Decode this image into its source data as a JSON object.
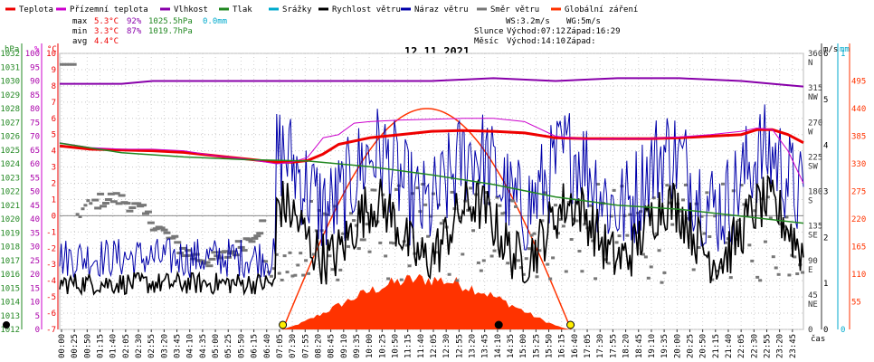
{
  "legend": [
    {
      "key": "teplota",
      "label": "Teplota",
      "color": "#ee0000"
    },
    {
      "key": "prizemni",
      "label": "Přízemní teplota",
      "color": "#cc00cc"
    },
    {
      "key": "vlhkost",
      "label": "Vlhkost",
      "color": "#8800aa"
    },
    {
      "key": "tlak",
      "label": "Tlak",
      "color": "#228822"
    },
    {
      "key": "srazky",
      "label": "Srážky",
      "color": "#00aacc"
    },
    {
      "key": "rychlost",
      "label": "Rychlost větru",
      "color": "#000000"
    },
    {
      "key": "naraz",
      "label": "Náraz větru",
      "color": "#0000aa"
    },
    {
      "key": "smer",
      "label": "Směr větru",
      "color": "#777777"
    },
    {
      "key": "zareni",
      "label": "Globální záření",
      "color": "#ff3300"
    }
  ],
  "stats": {
    "max_label": "max",
    "max_temp": "5.3°C",
    "max_hum": "92%",
    "max_press": "1025.5hPa",
    "max_rain": "0.0mm",
    "min_label": "min",
    "min_temp": "3.3°C",
    "min_hum": "87%",
    "min_press": "1019.7hPa",
    "avg_label": "avg",
    "avg_temp": "4.4°C"
  },
  "astro": {
    "ws": "WS:3.2m/s",
    "wg": "WG:5m/s",
    "sun_label": "Slunce",
    "sun_rise": "Východ:07:12",
    "sun_set": "Západ:16:29",
    "moon_label": "Měsíc",
    "moon_rise": "Východ:14:10",
    "moon_set": "Západ:"
  },
  "date": "12.11.2021",
  "chart_data": {
    "type": "line",
    "date": "12.11.2021",
    "xlabel": "čas",
    "axes": {
      "hpa": {
        "label": "hPa",
        "range": [
          1012,
          1032
        ],
        "ticks": [
          1012,
          1013,
          1014,
          1015,
          1016,
          1017,
          1018,
          1019,
          1020,
          1021,
          1022,
          1023,
          1024,
          1025,
          1026,
          1027,
          1028,
          1029,
          1030,
          1031,
          1032
        ]
      },
      "percent": {
        "label": "%",
        "range": [
          0,
          100
        ],
        "ticks": [
          0,
          5,
          10,
          15,
          20,
          25,
          30,
          35,
          40,
          45,
          50,
          55,
          60,
          65,
          70,
          75,
          80,
          85,
          90,
          95,
          100
        ]
      },
      "celsius": {
        "label": "°C",
        "range": [
          -7,
          10
        ],
        "ticks": [
          -7,
          -6,
          -5,
          -4,
          -3,
          -2,
          -1,
          0,
          1,
          2,
          3,
          4,
          5,
          6,
          7,
          8,
          9,
          10
        ]
      },
      "direction": {
        "range": [
          0,
          360
        ],
        "ticks": [
          {
            "v": 360,
            "n": "N"
          },
          {
            "v": 315,
            "n": "NW"
          },
          {
            "v": 270,
            "n": "W"
          },
          {
            "v": 225,
            "n": "SW"
          },
          {
            "v": 180,
            "n": "S"
          },
          {
            "v": 135,
            "n": "SE"
          },
          {
            "v": 90,
            "n": "E"
          },
          {
            "v": 45,
            "n": "NE"
          },
          {
            "v": 0,
            "n": ""
          }
        ]
      },
      "ms": {
        "label": "m/s",
        "range": [
          0,
          6
        ],
        "ticks": [
          0,
          1,
          2,
          3,
          4,
          5,
          6
        ]
      },
      "mm": {
        "label": "mm",
        "range": [
          0,
          1
        ],
        "ticks": [
          0,
          1
        ]
      },
      "wm2": {
        "range": [
          0,
          550
        ],
        "ticks": [
          55,
          110,
          165,
          220,
          275,
          330,
          385,
          440,
          495
        ]
      }
    },
    "x_ticks": [
      "00:00",
      "00:25",
      "00:50",
      "01:15",
      "01:40",
      "02:05",
      "02:30",
      "02:55",
      "03:20",
      "03:45",
      "04:10",
      "04:35",
      "05:00",
      "05:25",
      "05:50",
      "06:15",
      "06:40",
      "07:05",
      "07:30",
      "07:55",
      "08:20",
      "08:45",
      "09:10",
      "09:35",
      "10:00",
      "10:25",
      "10:50",
      "11:15",
      "11:40",
      "12:05",
      "12:30",
      "12:55",
      "13:20",
      "13:45",
      "14:10",
      "14:35",
      "15:00",
      "15:25",
      "15:50",
      "16:15",
      "16:40",
      "17:05",
      "17:30",
      "17:55",
      "18:20",
      "18:45",
      "19:10",
      "19:35",
      "20:00",
      "20:25",
      "20:50",
      "21:15",
      "21:40",
      "22:05",
      "22:30",
      "22:55",
      "23:20",
      "23:45"
    ],
    "series": [
      {
        "name": "Teplota",
        "axis": "celsius",
        "points": [
          [
            0,
            4.3
          ],
          [
            1,
            4.1
          ],
          [
            2,
            4.05
          ],
          [
            3,
            4.0
          ],
          [
            4,
            3.9
          ],
          [
            5,
            3.7
          ],
          [
            6,
            3.5
          ],
          [
            7,
            3.3
          ],
          [
            7.5,
            3.3
          ],
          [
            8,
            3.4
          ],
          [
            8.5,
            3.8
          ],
          [
            9,
            4.4
          ],
          [
            10,
            4.8
          ],
          [
            11,
            5.0
          ],
          [
            12,
            5.2
          ],
          [
            13,
            5.25
          ],
          [
            14,
            5.2
          ],
          [
            15,
            5.1
          ],
          [
            16,
            4.8
          ],
          [
            17,
            4.75
          ],
          [
            18,
            4.75
          ],
          [
            19,
            4.75
          ],
          [
            20,
            4.8
          ],
          [
            21,
            4.9
          ],
          [
            22,
            5.0
          ],
          [
            22.5,
            5.3
          ],
          [
            23,
            5.3
          ],
          [
            23.5,
            5.0
          ],
          [
            24,
            4.5
          ]
        ]
      },
      {
        "name": "Přízemní teplota",
        "axis": "celsius",
        "points": [
          [
            0,
            4.5
          ],
          [
            1,
            4.2
          ],
          [
            2,
            4.1
          ],
          [
            3,
            4.1
          ],
          [
            4,
            4.0
          ],
          [
            5,
            3.7
          ],
          [
            6,
            3.5
          ],
          [
            7,
            3.2
          ],
          [
            7.5,
            3.3
          ],
          [
            8,
            3.6
          ],
          [
            8.5,
            4.8
          ],
          [
            9,
            5.0
          ],
          [
            9.5,
            5.7
          ],
          [
            10,
            5.8
          ],
          [
            11,
            5.9
          ],
          [
            12,
            5.95
          ],
          [
            13,
            6.0
          ],
          [
            14,
            6.0
          ],
          [
            15,
            5.8
          ],
          [
            16,
            4.9
          ],
          [
            17,
            4.7
          ],
          [
            18,
            4.75
          ],
          [
            19,
            4.75
          ],
          [
            20,
            4.85
          ],
          [
            21,
            5.0
          ],
          [
            22,
            5.2
          ],
          [
            22.5,
            5.4
          ],
          [
            23,
            5.3
          ],
          [
            23.5,
            4.0
          ],
          [
            24,
            2.0
          ]
        ]
      },
      {
        "name": "Vlhkost",
        "axis": "percent",
        "points": [
          [
            0,
            89
          ],
          [
            2,
            89
          ],
          [
            3,
            90
          ],
          [
            5,
            90
          ],
          [
            7,
            90
          ],
          [
            8,
            90
          ],
          [
            10,
            90
          ],
          [
            12,
            90
          ],
          [
            14,
            91
          ],
          [
            16,
            90
          ],
          [
            18,
            91
          ],
          [
            20,
            91
          ],
          [
            22,
            90
          ],
          [
            23,
            89
          ],
          [
            24,
            88
          ]
        ]
      },
      {
        "name": "Tlak",
        "axis": "hpa",
        "points": [
          [
            0,
            1025.5
          ],
          [
            2,
            1024.8
          ],
          [
            4,
            1024.5
          ],
          [
            6,
            1024.3
          ],
          [
            8,
            1024.2
          ],
          [
            10,
            1023.8
          ],
          [
            12,
            1023.2
          ],
          [
            14,
            1022.5
          ],
          [
            16,
            1021.6
          ],
          [
            18,
            1021.0
          ],
          [
            20,
            1020.7
          ],
          [
            22,
            1020.2
          ],
          [
            24,
            1019.7
          ]
        ]
      },
      {
        "name": "Rychlost větru",
        "axis": "ms"
      },
      {
        "name": "Náraz větru",
        "axis": "ms"
      },
      {
        "name": "Směr větru",
        "axis": "direction"
      },
      {
        "name": "Globální záření",
        "axis": "wm2"
      }
    ],
    "radiation_peak_wm2": 100,
    "radiation_clear_sky_peak_wm2": 440,
    "markers": [
      {
        "time": "07:12",
        "type": "sunrise"
      },
      {
        "time": "16:29",
        "type": "sunset"
      },
      {
        "time": "14:10",
        "type": "moonrise"
      }
    ]
  }
}
